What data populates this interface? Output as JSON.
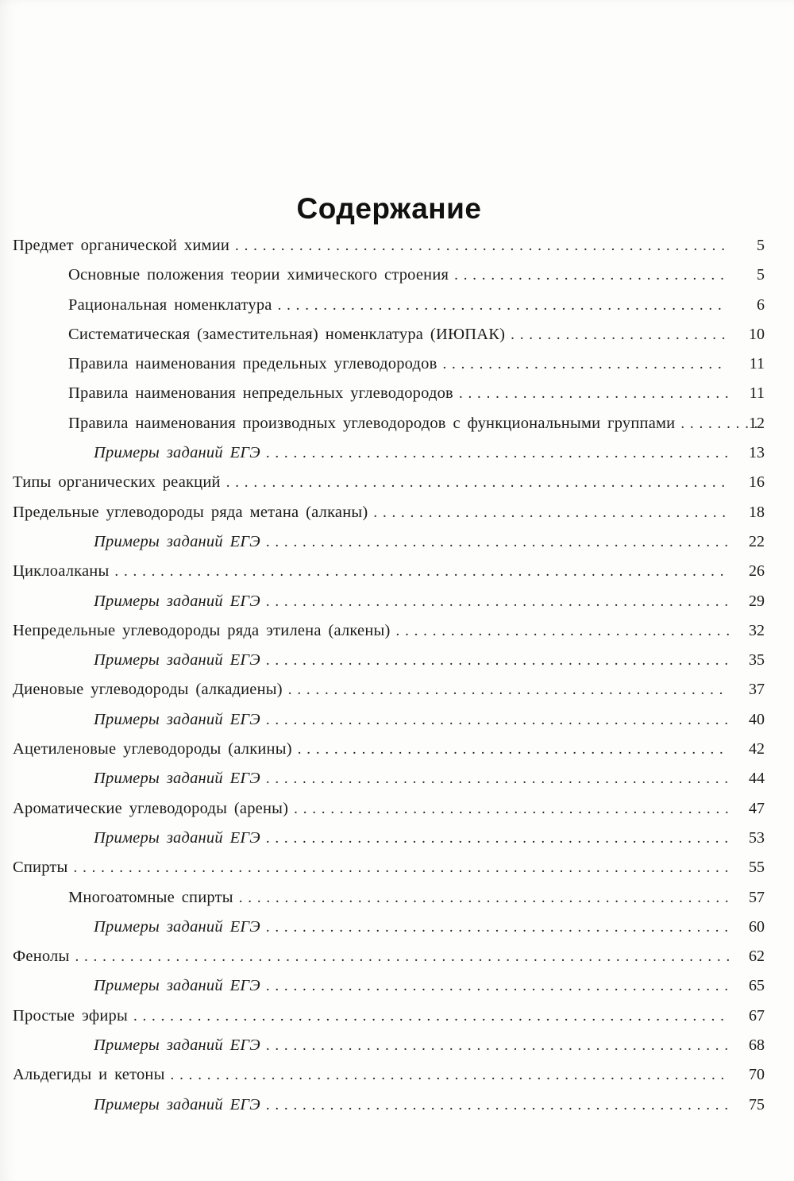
{
  "page": {
    "title": "Содержание"
  },
  "colors": {
    "text": "#1b1b1b",
    "page_background": "#fdfdfc"
  },
  "toc": {
    "entries": [
      {
        "title": "Предмет органической химии",
        "page": "5",
        "level": 0
      },
      {
        "title": "Основные положения теории химического строения",
        "page": "5",
        "level": 1
      },
      {
        "title": "Рациональная номенклатура",
        "page": "6",
        "level": 1
      },
      {
        "title": "Систематическая (заместительная) номенклатура (ИЮПАК)",
        "page": "10",
        "level": 1
      },
      {
        "title": "Правила наименования предельных углеводородов",
        "page": "11",
        "level": 1
      },
      {
        "title": "Правила наименования непредельных углеводородов",
        "page": "11",
        "level": 1
      },
      {
        "title": "Правила наименования производных углеводородов с функциональными группами",
        "page": "12",
        "level": 1
      },
      {
        "title": "Примеры заданий ЕГЭ",
        "page": "13",
        "level": 2
      },
      {
        "title": "Типы органических реакций",
        "page": "16",
        "level": 0
      },
      {
        "title": "Предельные углеводороды ряда метана (алканы)",
        "page": "18",
        "level": 0
      },
      {
        "title": "Примеры заданий ЕГЭ",
        "page": "22",
        "level": 2
      },
      {
        "title": "Циклоалканы",
        "page": "26",
        "level": 0
      },
      {
        "title": "Примеры заданий ЕГЭ",
        "page": "29",
        "level": 2
      },
      {
        "title": "Непредельные углеводороды ряда этилена (алкены)",
        "page": "32",
        "level": 0
      },
      {
        "title": "Примеры заданий ЕГЭ",
        "page": "35",
        "level": 2
      },
      {
        "title": "Диеновые углеводороды (алкадиены)",
        "page": "37",
        "level": 0
      },
      {
        "title": "Примеры заданий ЕГЭ",
        "page": "40",
        "level": 2
      },
      {
        "title": "Ацетиленовые углеводороды (алкины)",
        "page": "42",
        "level": 0
      },
      {
        "title": "Примеры заданий ЕГЭ",
        "page": "44",
        "level": 2
      },
      {
        "title": "Ароматические углеводороды (арены)",
        "page": "47",
        "level": 0
      },
      {
        "title": "Примеры заданий ЕГЭ",
        "page": "53",
        "level": 2
      },
      {
        "title": "Спирты",
        "page": "55",
        "level": 0
      },
      {
        "title": "Многоатомные спирты",
        "page": "57",
        "level": 1
      },
      {
        "title": "Примеры заданий ЕГЭ",
        "page": "60",
        "level": 2
      },
      {
        "title": "Фенолы",
        "page": "62",
        "level": 0
      },
      {
        "title": "Примеры заданий ЕГЭ",
        "page": "65",
        "level": 2
      },
      {
        "title": "Простые эфиры",
        "page": "67",
        "level": 0
      },
      {
        "title": "Примеры заданий ЕГЭ",
        "page": "68",
        "level": 2
      },
      {
        "title": "Альдегиды и кетоны",
        "page": "70",
        "level": 0
      },
      {
        "title": "Примеры заданий ЕГЭ",
        "page": "75",
        "level": 2
      }
    ]
  }
}
